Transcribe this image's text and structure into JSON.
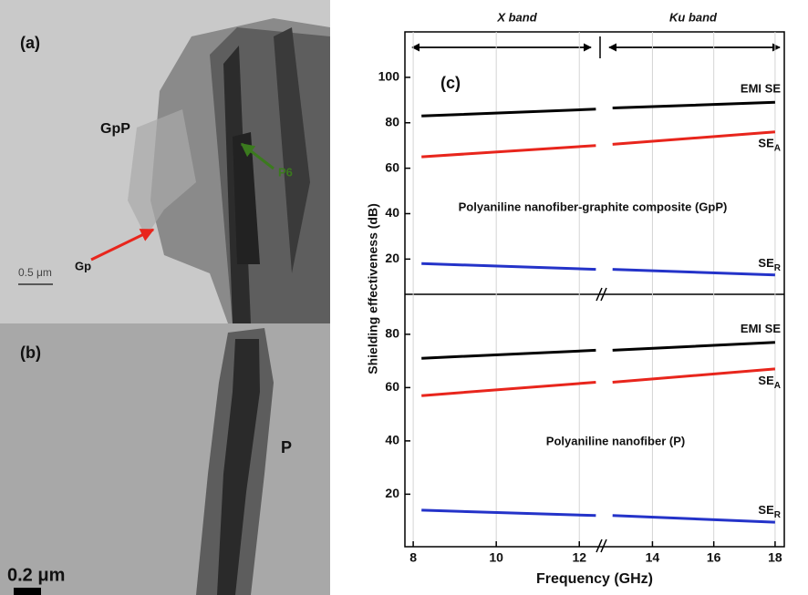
{
  "images": {
    "a_label": "(a)",
    "gpp": "GpP",
    "gp": "Gp",
    "p6": "P6",
    "scale_a": "0.5 μm",
    "b_label": "(b)",
    "p": "P",
    "scale_b": "0.2 μm"
  },
  "chart_data": [
    {
      "type": "line",
      "panel_label": "(c)",
      "ylabel": "Shielding effectiveness (dB)",
      "annotations": [
        "X band",
        "Ku band",
        "Polyaniline nanofiber-graphite composite (GpP)"
      ],
      "x": [
        8.2,
        12.4,
        12.5,
        12.7,
        18
      ],
      "xlim": [
        7.8,
        18.3
      ],
      "xbreak": 12.5,
      "ylim": [
        4.5,
        120
      ],
      "yticks": [
        20,
        40,
        60,
        80,
        100
      ],
      "grid": true,
      "series": [
        {
          "name": "EMI SE",
          "color": "#000000",
          "values": [
            83,
            86,
            null,
            86.5,
            89
          ]
        },
        {
          "name": "SEA",
          "color": "#e8251c",
          "values": [
            65,
            70,
            null,
            70.5,
            76
          ]
        },
        {
          "name": "SER",
          "color": "#2433c9",
          "values": [
            18,
            15.5,
            null,
            15.5,
            13
          ]
        }
      ]
    },
    {
      "type": "line",
      "xlabel": "Frequency (GHz)",
      "annotations": [
        "Polyaniline nanofiber (P)"
      ],
      "x": [
        8.2,
        12.4,
        12.5,
        12.7,
        18
      ],
      "xlim": [
        7.8,
        18.3
      ],
      "xbreak": 12.5,
      "xticks": [
        8,
        10,
        12,
        14,
        16,
        18
      ],
      "ylim": [
        0.3,
        95
      ],
      "yticks": [
        20,
        40,
        60,
        80
      ],
      "grid": true,
      "series": [
        {
          "name": "EMI SE",
          "color": "#000000",
          "values": [
            71,
            74,
            null,
            74,
            77
          ]
        },
        {
          "name": "SEA",
          "color": "#e8251c",
          "values": [
            57,
            62,
            null,
            62,
            67
          ]
        },
        {
          "name": "SER",
          "color": "#2433c9",
          "values": [
            14,
            12,
            null,
            12,
            9.5
          ]
        }
      ]
    }
  ]
}
